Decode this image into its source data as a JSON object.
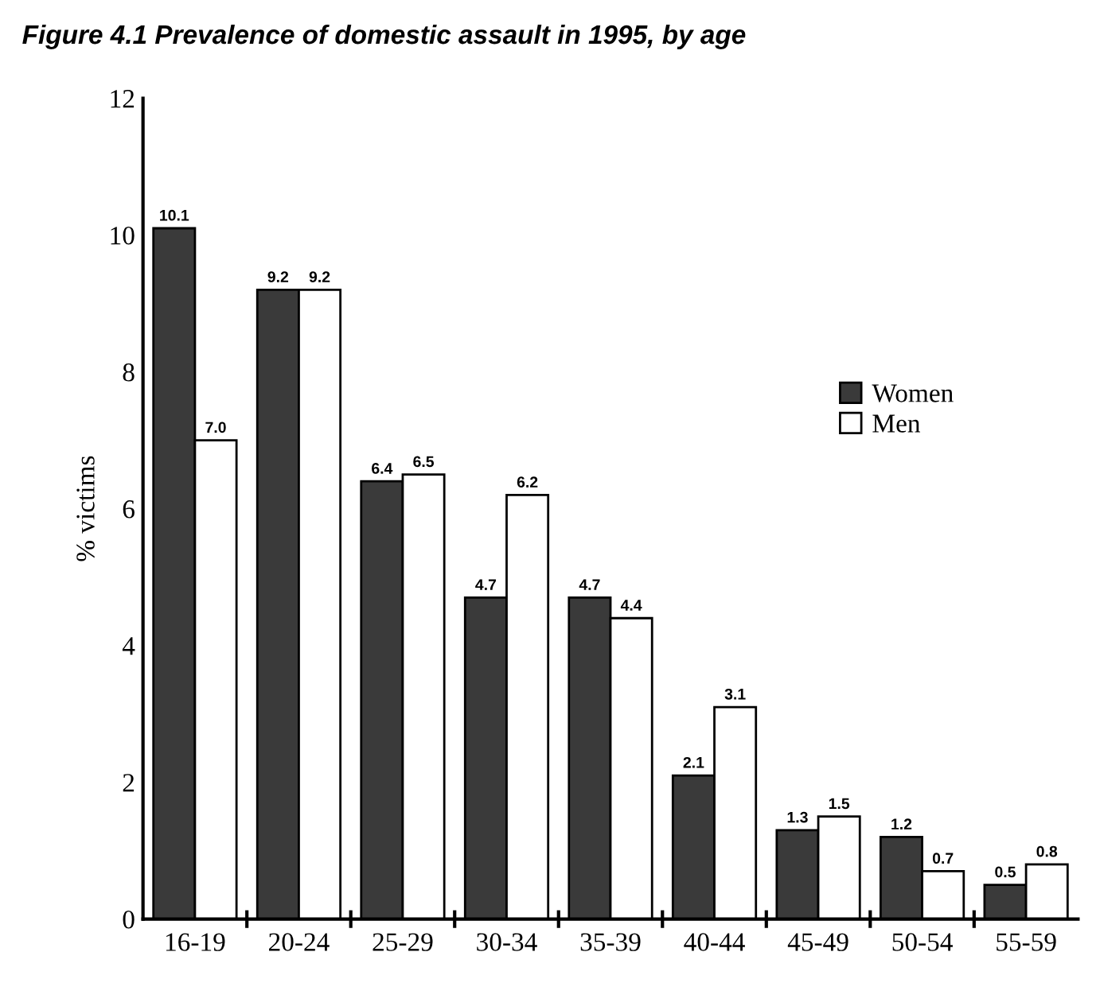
{
  "chart_data": {
    "type": "bar",
    "title": "Figure 4.1 Prevalence of domestic assault in 1995, by age",
    "ylabel": "% victims",
    "categories": [
      "16-19",
      "20-24",
      "25-29",
      "30-34",
      "35-39",
      "40-44",
      "45-49",
      "50-54",
      "55-59"
    ],
    "series": [
      {
        "name": "Women",
        "color": "#3a3a3a",
        "values": [
          10.1,
          9.2,
          6.4,
          4.7,
          4.7,
          2.1,
          1.3,
          1.2,
          0.5
        ]
      },
      {
        "name": "Men",
        "color": "#ffffff",
        "values": [
          7.0,
          9.2,
          6.5,
          6.2,
          4.4,
          3.1,
          1.5,
          0.7,
          0.8
        ],
        "value_labels": [
          "7.0",
          "9.2",
          "6.5",
          "6.2",
          "4.4",
          "3.1",
          "1.5",
          "0.7",
          "0.8"
        ]
      }
    ],
    "ylim": [
      0,
      12
    ],
    "yticks": [
      0,
      2,
      4,
      6,
      8,
      10,
      12
    ],
    "data_labels": true,
    "legend": "right",
    "grid": false
  }
}
